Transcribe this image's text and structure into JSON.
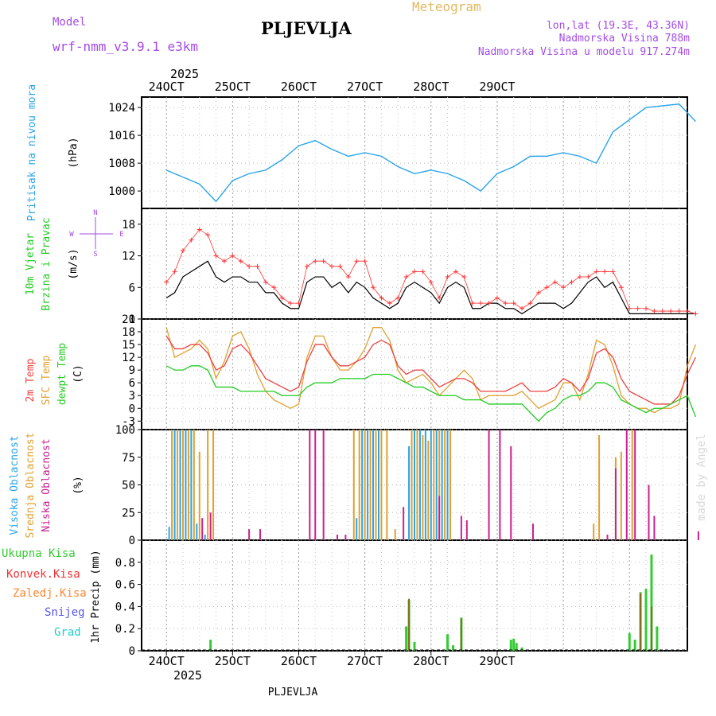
{
  "header": {
    "model_label": "Model",
    "model_name": "wrf-nmm_v3.9.1 e3km",
    "title": "PLJEVLJA",
    "meteogram": "Meteogram",
    "lonlat": "lon,lat (19.3E, 43.36N)",
    "elevation": "Nadmorska Visina 788m",
    "model_elevation": "Nadmorska Visina u modelu 917.274m",
    "footer": "PLJEVLJA",
    "watermark": "made by Angel"
  },
  "colors": {
    "pressure": "#2aa4e8",
    "wind_speed": "#000000",
    "gust": "#ff3333",
    "t2m": "#ee4040",
    "sfc": "#e0a030",
    "dewpt": "#22cc22",
    "cloud_high": "#2aa4e8",
    "cloud_mid": "#e0a030",
    "cloud_low": "#cc2090",
    "precip_total": "#33cc33",
    "precip_conv": "#ee3333",
    "precip_strat": "#ff8833",
    "snow": "#5555ee",
    "graupel": "#22cccc",
    "label_purple": "#a34be8"
  },
  "chart_data": [
    {
      "type": "line",
      "name": "pressure",
      "ylabel_left": "Pritisak na nivou mora",
      "ylabel_unit": "(hPa)",
      "ylim": [
        995,
        1027
      ],
      "yticks": [
        "1000",
        "1008",
        "1016",
        "1024"
      ],
      "top_year": "2025",
      "x_dates": [
        "24OCT",
        "25OCT",
        "26OCT",
        "27OCT",
        "28OCT",
        "29OCT"
      ],
      "x_hours": [
        0,
        6,
        12,
        18,
        24,
        30,
        36,
        42,
        48,
        54,
        60,
        66,
        72,
        78,
        84,
        90,
        96,
        102,
        108,
        114,
        120,
        126,
        132,
        138,
        144,
        150,
        156,
        162
      ],
      "values": [
        1006,
        1004,
        1002,
        997,
        1003,
        1005,
        1006,
        1009,
        1013,
        1014.5,
        1012,
        1010,
        1011,
        1010,
        1007,
        1005,
        1006,
        1005,
        1003,
        1000,
        1005,
        1007,
        1010,
        1010,
        1011,
        1010,
        1008,
        1017,
        1024,
        1025,
        1020
      ],
      "x_full": [
        0,
        6,
        12,
        18,
        24,
        30,
        36,
        42,
        48,
        54,
        60,
        66,
        72,
        78,
        84,
        90,
        96,
        102,
        108,
        114,
        120,
        126,
        132,
        138,
        144,
        150,
        156,
        162,
        174,
        186,
        192
      ]
    },
    {
      "type": "line",
      "name": "wind",
      "ylabel_left1": "10m Vjetar",
      "ylabel_left2": "Brzina i Pravac",
      "ylabel_unit": "(m/s)",
      "compass": [
        "N",
        "W",
        "E",
        "S"
      ],
      "ylim": [
        0,
        21
      ],
      "yticks": [
        "0",
        "6",
        "12",
        "18"
      ],
      "hours": [
        0,
        3,
        6,
        9,
        12,
        15,
        18,
        21,
        24,
        27,
        30,
        33,
        36,
        39,
        42,
        45,
        48,
        51,
        54,
        57,
        60,
        63,
        66,
        69,
        72,
        75,
        78,
        81,
        84,
        87,
        90,
        93,
        96,
        99,
        102,
        105,
        108,
        111,
        114,
        117,
        120,
        123,
        126,
        129,
        132,
        135,
        138,
        141,
        144,
        147,
        150,
        153,
        156,
        159,
        162,
        165,
        168,
        171,
        174,
        177,
        180,
        183,
        186,
        189,
        192
      ],
      "speed": [
        4,
        5,
        8,
        9,
        10,
        11,
        8,
        7,
        8,
        8,
        7,
        7,
        5,
        5,
        3,
        2,
        2,
        7,
        8,
        8,
        6,
        7,
        5,
        7,
        6,
        4,
        3,
        2,
        3,
        6,
        7,
        6,
        5,
        3,
        6,
        7,
        6,
        2,
        2,
        3,
        3,
        2,
        2,
        1,
        2,
        3,
        3,
        3,
        2,
        3,
        5,
        7,
        8,
        6,
        7,
        4,
        1,
        1,
        1,
        1,
        1,
        1,
        1,
        1,
        1
      ],
      "gust": [
        7,
        9,
        13,
        15,
        17,
        16,
        12,
        11,
        12,
        11,
        10,
        10,
        7,
        6,
        4,
        3,
        3,
        10,
        11,
        11,
        10,
        10,
        8,
        11,
        11,
        6,
        4,
        3,
        4,
        8,
        9,
        9,
        7,
        4,
        8,
        9,
        8,
        3,
        3,
        3,
        4,
        3,
        3,
        2,
        3,
        5,
        6,
        7,
        6,
        7,
        8,
        8,
        9,
        9,
        9,
        6,
        2,
        2,
        2,
        1.5,
        1.5,
        1.5,
        1.5,
        1.5,
        1
      ]
    },
    {
      "type": "line",
      "name": "temperature",
      "ylabel_left1": "2m Temp",
      "ylabel_left2": "SFC Temp",
      "ylabel_left3": "dewpt Temp",
      "ylabel_unit": "(C)",
      "ylim": [
        -5,
        21
      ],
      "yticks": [
        "-3",
        "0",
        "3",
        "6",
        "9",
        "12",
        "15",
        "18",
        "21"
      ],
      "hours": [
        0,
        3,
        6,
        9,
        12,
        15,
        18,
        21,
        24,
        27,
        30,
        33,
        36,
        39,
        42,
        45,
        48,
        51,
        54,
        57,
        60,
        63,
        66,
        69,
        72,
        75,
        78,
        81,
        84,
        87,
        90,
        93,
        96,
        99,
        102,
        105,
        108,
        111,
        114,
        117,
        120,
        123,
        126,
        129,
        132,
        135,
        138,
        141,
        144,
        147,
        150,
        153,
        156,
        159,
        162,
        165,
        168,
        171,
        174,
        177,
        180,
        183,
        186,
        189,
        192
      ],
      "t2m": [
        17,
        14,
        14,
        15,
        15,
        13,
        9,
        10,
        14,
        15,
        13,
        10,
        7,
        6,
        5,
        4,
        5,
        11,
        15,
        15,
        12,
        10,
        10,
        11,
        12,
        15,
        16,
        15,
        10,
        8,
        9,
        9,
        7,
        5,
        6,
        7,
        7,
        6,
        4,
        4,
        4,
        4,
        5,
        6,
        4,
        4,
        4,
        5,
        7,
        6,
        4,
        7,
        13,
        14,
        12,
        7,
        4,
        3,
        2,
        1,
        1,
        1,
        3,
        8,
        12
      ],
      "sfc": [
        19,
        12,
        13,
        14,
        16,
        14,
        7,
        11,
        17,
        18,
        14,
        8,
        4,
        2,
        1,
        0,
        1,
        12,
        17,
        17,
        12,
        9,
        9,
        11,
        14,
        19,
        19,
        16,
        9,
        6,
        7,
        8,
        6,
        3,
        5,
        7,
        9,
        7,
        2,
        3,
        3,
        3,
        3,
        4,
        2,
        0,
        1,
        2,
        6,
        6,
        2,
        8,
        16,
        15,
        10,
        3,
        1,
        0,
        0,
        -1,
        0,
        0,
        1,
        10,
        15
      ],
      "dewpt": [
        10,
        9,
        9,
        10,
        10,
        9,
        5,
        5,
        5,
        4,
        4,
        4,
        4,
        4,
        3,
        3,
        3,
        5,
        6,
        6,
        6,
        7,
        7,
        7,
        7,
        8,
        8,
        8,
        7,
        6,
        5,
        5,
        4,
        3,
        3,
        3,
        2,
        2,
        2,
        1,
        1,
        1,
        1,
        1,
        -1,
        -3,
        -1,
        0,
        2,
        3,
        3,
        4,
        6,
        6,
        5,
        2,
        1,
        0,
        -1,
        0,
        0,
        1,
        2,
        3,
        -2
      ]
    },
    {
      "type": "bar",
      "name": "cloud",
      "ylabel_left1": "Visoka Oblacnost",
      "ylabel_left2": "Srednja Oblacnost",
      "ylabel_left3": "Niska Oblacnost",
      "ylabel_unit": "(%)",
      "ylim": [
        0,
        100
      ],
      "yticks": [
        "0",
        "25",
        "50",
        "75",
        "100"
      ],
      "high": [
        [
          1,
          12
        ],
        [
          3,
          100
        ],
        [
          5,
          100
        ],
        [
          7,
          100
        ],
        [
          9,
          100
        ],
        [
          11,
          15
        ],
        [
          14,
          5
        ],
        [
          69,
          20
        ],
        [
          71,
          100
        ],
        [
          73,
          100
        ],
        [
          75,
          100
        ],
        [
          77,
          100
        ],
        [
          88,
          85
        ],
        [
          90,
          100
        ],
        [
          92,
          100
        ],
        [
          94,
          100
        ],
        [
          96,
          100
        ],
        [
          98,
          100
        ],
        [
          100,
          100
        ],
        [
          102,
          100
        ]
      ],
      "mid": [
        [
          2,
          100
        ],
        [
          4,
          100
        ],
        [
          6,
          100
        ],
        [
          8,
          100
        ],
        [
          10,
          100
        ],
        [
          12,
          80
        ],
        [
          15,
          100
        ],
        [
          17,
          100
        ],
        [
          68,
          100
        ],
        [
          70,
          100
        ],
        [
          72,
          100
        ],
        [
          74,
          100
        ],
        [
          76,
          100
        ],
        [
          78,
          100
        ],
        [
          80,
          100
        ],
        [
          83,
          10
        ],
        [
          89,
          100
        ],
        [
          91,
          100
        ],
        [
          93,
          95
        ],
        [
          95,
          90
        ],
        [
          97,
          100
        ],
        [
          99,
          100
        ],
        [
          101,
          100
        ],
        [
          103,
          100
        ],
        [
          155,
          15
        ],
        [
          157,
          95
        ],
        [
          163,
          75
        ],
        [
          165,
          80
        ],
        [
          169,
          100
        ]
      ],
      "low": [
        [
          13,
          20
        ],
        [
          16,
          25
        ],
        [
          30,
          10
        ],
        [
          34,
          10
        ],
        [
          52,
          100
        ],
        [
          54,
          100
        ],
        [
          57,
          100
        ],
        [
          62,
          5
        ],
        [
          65,
          5
        ],
        [
          86,
          30
        ],
        [
          99,
          40
        ],
        [
          107,
          22
        ],
        [
          109,
          18
        ],
        [
          117,
          100
        ],
        [
          121,
          100
        ],
        [
          125,
          85
        ],
        [
          133,
          15
        ],
        [
          160,
          5
        ],
        [
          163,
          65
        ],
        [
          167,
          100
        ],
        [
          170,
          100
        ],
        [
          175,
          50
        ],
        [
          177,
          22
        ],
        [
          193,
          8
        ]
      ]
    },
    {
      "type": "bar",
      "name": "precip",
      "legend": [
        "Ukupna Kisa",
        "Konvek.Kisa",
        "Zaledj.Kisa",
        "Snijeg",
        "Grad"
      ],
      "ylabel_unit": "1hr Precip (mm)",
      "ylim": [
        0,
        1.0
      ],
      "yticks": [
        "0",
        "0.2",
        "0.4",
        "0.6",
        "0.8"
      ],
      "bottom_year": "2025",
      "x_dates": [
        "24OCT",
        "25OCT",
        "26OCT",
        "27OCT",
        "28OCT",
        "29OCT"
      ],
      "total": [
        [
          16,
          0.1
        ],
        [
          87,
          0.22
        ],
        [
          88,
          0.46
        ],
        [
          90,
          0.08
        ],
        [
          102,
          0.15
        ],
        [
          104,
          0.05
        ],
        [
          107,
          0.3
        ],
        [
          125,
          0.1
        ],
        [
          126,
          0.11
        ],
        [
          127,
          0.07
        ],
        [
          129,
          0.03
        ],
        [
          168,
          0.16
        ],
        [
          170,
          0.1
        ],
        [
          172,
          0.53
        ],
        [
          174,
          0.56
        ],
        [
          176,
          0.87
        ],
        [
          178,
          0.22
        ]
      ],
      "conv": [
        [
          88,
          0.47
        ],
        [
          107,
          0.29
        ],
        [
          172,
          0.52
        ],
        [
          176,
          0.4
        ]
      ]
    }
  ]
}
